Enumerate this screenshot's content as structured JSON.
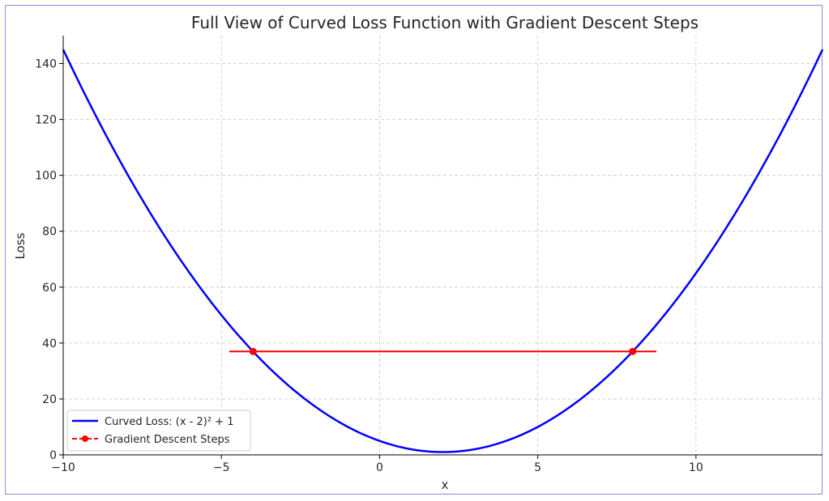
{
  "chart_data": {
    "type": "line",
    "title": "Full View of Curved Loss Function with Gradient Descent Steps",
    "xlabel": "x",
    "ylabel": "Loss",
    "xlim": [
      -10,
      14
    ],
    "ylim": [
      0,
      150
    ],
    "xticks": [
      -10,
      -5,
      0,
      5,
      10
    ],
    "xtick_labels": [
      "−10",
      "−5",
      "0",
      "5",
      "10"
    ],
    "yticks": [
      0,
      20,
      40,
      60,
      80,
      100,
      120,
      140
    ],
    "ytick_labels": [
      "0",
      "20",
      "40",
      "60",
      "80",
      "100",
      "120",
      "140"
    ],
    "grid": true,
    "legend_position": "lower-left",
    "series": [
      {
        "name": "Curved Loss: (x - 2)² + 1",
        "kind": "curve",
        "function": "(x - 2)^2 + 1",
        "x_range": [
          -10,
          14
        ],
        "color": "#0000ff"
      },
      {
        "name": "Gradient Descent Steps",
        "kind": "steps",
        "points": [
          {
            "x": -4,
            "y": 37
          },
          {
            "x": 8,
            "y": 37
          }
        ],
        "color": "#ff0000"
      }
    ],
    "annotations": [
      {
        "kind": "horizontal-segment",
        "x_start": -4.75,
        "x_end": 8.75,
        "y": 37,
        "color": "#ff0000"
      }
    ]
  }
}
